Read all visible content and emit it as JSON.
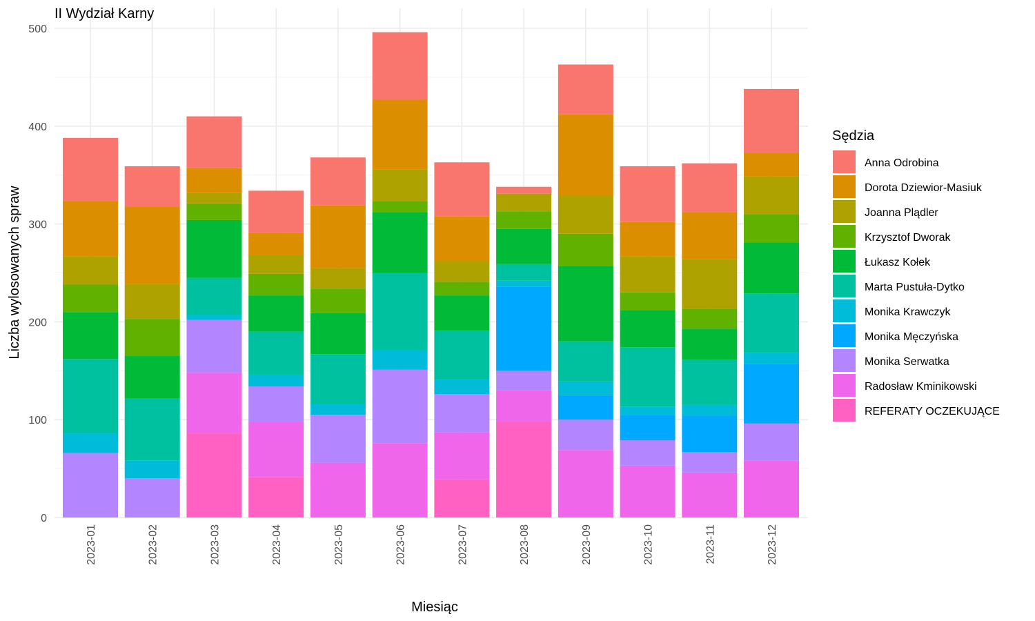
{
  "chart_data": {
    "type": "bar",
    "stacked": true,
    "title": "II Wydział Karny",
    "xlabel": "Miesiąc",
    "ylabel": "Liczba wylosowanych spraw",
    "ylim": [
      0,
      500
    ],
    "yticks": [
      0,
      100,
      200,
      300,
      400,
      500
    ],
    "grid": true,
    "legend_position": "right",
    "legend_title": "Sędzia",
    "categories": [
      "2023-01",
      "2023-02",
      "2023-03",
      "2023-04",
      "2023-05",
      "2023-06",
      "2023-07",
      "2023-08",
      "2023-09",
      "2023-10",
      "2023-11",
      "2023-12"
    ],
    "series": [
      {
        "name": "REFERATY OCZEKUJĄCE",
        "color": "#FF61C3",
        "values": [
          0,
          0,
          86,
          41,
          0,
          0,
          39,
          98,
          0,
          0,
          0,
          0
        ]
      },
      {
        "name": "Radosław Kminikowski",
        "color": "#F066EA",
        "values": [
          0,
          0,
          62,
          57,
          56,
          76,
          48,
          32,
          69,
          53,
          46,
          58
        ]
      },
      {
        "name": "Monika Serwatka",
        "color": "#B385FF",
        "values": [
          66,
          40,
          54,
          36,
          49,
          75,
          39,
          20,
          31,
          26,
          21,
          38
        ]
      },
      {
        "name": "Monika Męczyńska",
        "color": "#00A9FF",
        "values": [
          0,
          0,
          0,
          0,
          0,
          0,
          0,
          86,
          25,
          26,
          37,
          61
        ]
      },
      {
        "name": "Monika Krawczyk",
        "color": "#00BCD8",
        "values": [
          20,
          18,
          5,
          12,
          11,
          20,
          15,
          6,
          14,
          8,
          11,
          11
        ]
      },
      {
        "name": "Marta Pustuła-Dytko",
        "color": "#00C19F",
        "values": [
          76,
          64,
          38,
          44,
          51,
          79,
          50,
          17,
          41,
          61,
          46,
          61
        ]
      },
      {
        "name": "Łukasz Kołek",
        "color": "#00BA38",
        "values": [
          48,
          43,
          59,
          37,
          42,
          62,
          36,
          36,
          77,
          38,
          32,
          52
        ]
      },
      {
        "name": "Krzysztof Dworak",
        "color": "#61B200",
        "values": [
          28,
          38,
          17,
          22,
          25,
          11,
          14,
          18,
          33,
          18,
          20,
          29
        ]
      },
      {
        "name": "Joanna Plądler",
        "color": "#ADA200",
        "values": [
          29,
          36,
          11,
          19,
          21,
          33,
          21,
          18,
          39,
          37,
          51,
          39
        ]
      },
      {
        "name": "Dorota Dziewior-Masiuk",
        "color": "#DB8E00",
        "values": [
          56,
          79,
          25,
          23,
          64,
          71,
          46,
          0,
          83,
          35,
          48,
          24
        ]
      },
      {
        "name": "Anna Odrobina",
        "color": "#F8766D",
        "values": [
          65,
          41,
          53,
          43,
          49,
          69,
          55,
          7,
          51,
          57,
          50,
          65
        ]
      }
    ]
  }
}
